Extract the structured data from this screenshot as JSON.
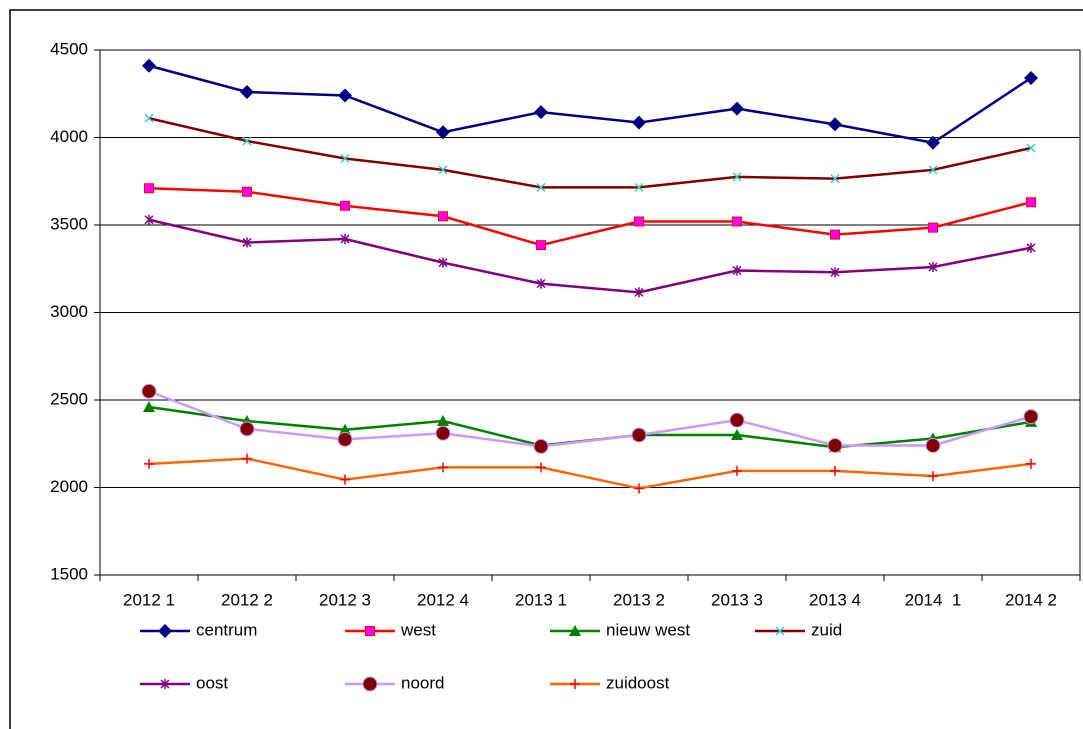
{
  "chart_data": {
    "type": "line",
    "categories": [
      "2012 1",
      "2012 2",
      "2012 3",
      "2012 4",
      "2013 1",
      "2013 2",
      "2013 3",
      "2013 4",
      "2014  1",
      "2014 2"
    ],
    "series": [
      {
        "name": "centrum",
        "color": "#000080",
        "marker": "diamond",
        "marker_color": "#000080",
        "values": [
          4410,
          4260,
          4240,
          4030,
          4145,
          4085,
          4165,
          4075,
          3970,
          4340
        ]
      },
      {
        "name": "west",
        "color": "#ff0000",
        "marker": "square",
        "marker_color": "#ff00ff",
        "values": [
          3710,
          3690,
          3610,
          3550,
          3385,
          3520,
          3520,
          3445,
          3485,
          3630
        ]
      },
      {
        "name": "nieuw west",
        "color": "#008000",
        "marker": "triangle",
        "marker_color": "#008000",
        "values": [
          2460,
          2380,
          2330,
          2380,
          2240,
          2300,
          2300,
          2230,
          2280,
          2375
        ]
      },
      {
        "name": "zuid",
        "color": "#800000",
        "marker": "x",
        "marker_color": "#33cccc",
        "values": [
          4110,
          3980,
          3880,
          3815,
          3715,
          3715,
          3775,
          3765,
          3815,
          3940
        ]
      },
      {
        "name": "oost",
        "color": "#800080",
        "marker": "star",
        "marker_color": "#800080",
        "values": [
          3530,
          3400,
          3420,
          3285,
          3165,
          3115,
          3240,
          3230,
          3260,
          3370
        ]
      },
      {
        "name": "noord",
        "color": "#cc99ff",
        "marker": "circle",
        "marker_color": "#800000",
        "values": [
          2550,
          2335,
          2275,
          2310,
          2235,
          2300,
          2385,
          2240,
          2240,
          2405
        ]
      },
      {
        "name": "zuidoost",
        "color": "#ff6600",
        "marker": "plus",
        "marker_color": "#ff0000",
        "values": [
          2135,
          2165,
          2045,
          2115,
          2115,
          1995,
          2095,
          2095,
          2065,
          2135
        ]
      }
    ],
    "ylim": [
      1500,
      4500
    ],
    "yticks": [
      1500,
      2000,
      2500,
      3000,
      3500,
      4000,
      4500
    ],
    "grid": true
  }
}
